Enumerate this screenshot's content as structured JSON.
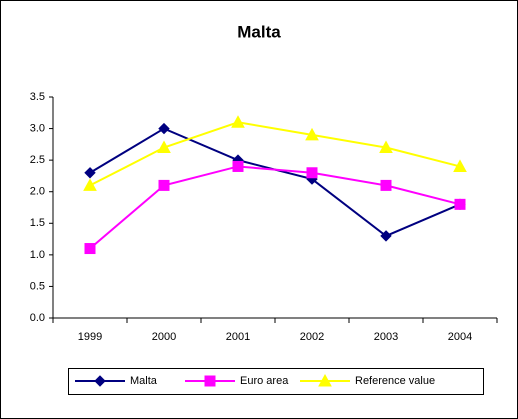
{
  "chart_data": {
    "type": "line",
    "title": "Malta",
    "categories": [
      "1999",
      "2000",
      "2001",
      "2002",
      "2003",
      "2004"
    ],
    "series": [
      {
        "name": "Malta",
        "color": "#000080",
        "marker": "diamond",
        "values": [
          2.3,
          3.0,
          2.5,
          2.2,
          1.3,
          1.8
        ]
      },
      {
        "name": "Euro area",
        "color": "#ff00ff",
        "marker": "square",
        "values": [
          1.1,
          2.1,
          2.4,
          2.3,
          2.1,
          1.8
        ]
      },
      {
        "name": "Reference value",
        "color": "#ffff00",
        "marker": "triangle",
        "values": [
          2.1,
          2.7,
          3.1,
          2.9,
          2.7,
          2.4
        ]
      }
    ],
    "ylim": [
      0,
      3.5
    ],
    "yticks": [
      {
        "value": 0,
        "label": "0.0"
      },
      0.5,
      {
        "value": 1,
        "label": "1.0"
      },
      1.5,
      {
        "value": 2,
        "label": "2.0"
      },
      2.5,
      {
        "value": 3,
        "label": "3.0"
      },
      3.5
    ],
    "grid": false,
    "legend": "bottom"
  }
}
